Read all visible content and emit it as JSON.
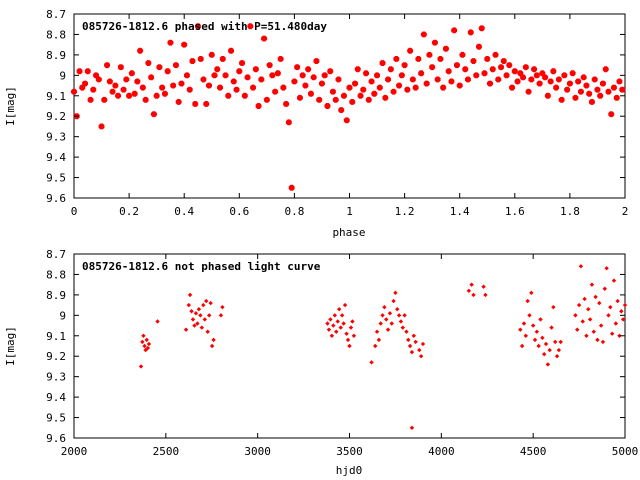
{
  "chart_data": [
    {
      "type": "scatter",
      "title": "085726-1812.6 phased with P=51.480day",
      "xlabel": "phase",
      "ylabel": "I[mag]",
      "xlim": [
        0,
        2
      ],
      "ylim": [
        9.6,
        8.7
      ],
      "y_inverted": true,
      "x_ticks": [
        0,
        0.2,
        0.4,
        0.6,
        0.8,
        1,
        1.2,
        1.4,
        1.6,
        1.8,
        2
      ],
      "x_tick_labels": [
        "0",
        "0.2",
        "0.4",
        "0.6",
        "0.8",
        "1",
        "1.2",
        "1.4",
        "1.6",
        "1.8",
        "2"
      ],
      "y_ticks": [
        8.7,
        8.8,
        8.9,
        9.0,
        9.1,
        9.2,
        9.3,
        9.4,
        9.5,
        9.6
      ],
      "y_tick_labels": [
        "8.7",
        "8.8",
        "8.9",
        "9",
        "9.1",
        "9.2",
        "9.3",
        "9.4",
        "9.5",
        "9.6"
      ],
      "marker_color": "#ff0000",
      "grid": false,
      "points": [
        [
          0.0,
          9.08
        ],
        [
          0.01,
          9.2
        ],
        [
          0.02,
          8.98
        ],
        [
          0.03,
          9.06
        ],
        [
          0.04,
          9.04
        ],
        [
          0.05,
          8.98
        ],
        [
          0.06,
          9.12
        ],
        [
          0.07,
          9.07
        ],
        [
          0.08,
          9.0
        ],
        [
          0.09,
          9.02
        ],
        [
          0.1,
          9.25
        ],
        [
          0.11,
          9.12
        ],
        [
          0.12,
          8.95
        ],
        [
          0.13,
          9.03
        ],
        [
          0.14,
          9.08
        ],
        [
          0.15,
          9.05
        ],
        [
          0.16,
          9.1
        ],
        [
          0.17,
          8.96
        ],
        [
          0.18,
          9.07
        ],
        [
          0.19,
          9.02
        ],
        [
          0.2,
          9.1
        ],
        [
          0.21,
          8.99
        ],
        [
          0.22,
          9.09
        ],
        [
          0.23,
          9.03
        ],
        [
          0.24,
          8.88
        ],
        [
          0.25,
          9.06
        ],
        [
          0.26,
          9.12
        ],
        [
          0.27,
          8.94
        ],
        [
          0.28,
          9.01
        ],
        [
          0.29,
          9.19
        ],
        [
          0.3,
          9.1
        ],
        [
          0.31,
          8.96
        ],
        [
          0.32,
          9.06
        ],
        [
          0.33,
          9.09
        ],
        [
          0.34,
          8.98
        ],
        [
          0.35,
          8.84
        ],
        [
          0.36,
          9.05
        ],
        [
          0.37,
          8.95
        ],
        [
          0.38,
          9.13
        ],
        [
          0.39,
          9.04
        ],
        [
          0.4,
          8.85
        ],
        [
          0.41,
          9.0
        ],
        [
          0.42,
          9.07
        ],
        [
          0.43,
          8.93
        ],
        [
          0.44,
          9.14
        ],
        [
          0.45,
          8.76
        ],
        [
          0.46,
          8.92
        ],
        [
          0.47,
          9.02
        ],
        [
          0.48,
          9.14
        ],
        [
          0.49,
          9.05
        ],
        [
          0.5,
          8.9
        ],
        [
          0.51,
          9.0
        ],
        [
          0.52,
          8.97
        ],
        [
          0.53,
          9.06
        ],
        [
          0.54,
          8.92
        ],
        [
          0.55,
          9.0
        ],
        [
          0.56,
          9.1
        ],
        [
          0.57,
          8.88
        ],
        [
          0.58,
          9.03
        ],
        [
          0.59,
          9.07
        ],
        [
          0.6,
          8.98
        ],
        [
          0.61,
          8.94
        ],
        [
          0.62,
          9.1
        ],
        [
          0.63,
          9.01
        ],
        [
          0.64,
          8.76
        ],
        [
          0.65,
          9.06
        ],
        [
          0.66,
          8.97
        ],
        [
          0.67,
          9.15
        ],
        [
          0.68,
          9.02
        ],
        [
          0.69,
          8.82
        ],
        [
          0.7,
          9.12
        ],
        [
          0.71,
          8.95
        ],
        [
          0.72,
          9.0
        ],
        [
          0.73,
          9.08
        ],
        [
          0.74,
          8.99
        ],
        [
          0.75,
          8.92
        ],
        [
          0.76,
          9.06
        ],
        [
          0.77,
          9.14
        ],
        [
          0.78,
          9.23
        ],
        [
          0.79,
          9.55
        ],
        [
          0.8,
          9.03
        ],
        [
          0.81,
          8.96
        ],
        [
          0.82,
          9.11
        ],
        [
          0.83,
          9.0
        ],
        [
          0.84,
          9.05
        ],
        [
          0.85,
          8.97
        ],
        [
          0.86,
          9.09
        ],
        [
          0.87,
          9.01
        ],
        [
          0.88,
          8.93
        ],
        [
          0.89,
          9.12
        ],
        [
          0.9,
          9.04
        ],
        [
          0.91,
          9.0
        ],
        [
          0.92,
          9.15
        ],
        [
          0.93,
          8.98
        ],
        [
          0.94,
          9.08
        ],
        [
          0.95,
          9.12
        ],
        [
          0.96,
          9.02
        ],
        [
          0.97,
          9.17
        ],
        [
          0.98,
          9.1
        ],
        [
          0.99,
          9.22
        ],
        [
          1.0,
          9.06
        ],
        [
          1.01,
          9.13
        ],
        [
          1.02,
          9.04
        ],
        [
          1.03,
          8.97
        ],
        [
          1.04,
          9.1
        ],
        [
          1.05,
          9.07
        ],
        [
          1.06,
          8.99
        ],
        [
          1.07,
          9.12
        ],
        [
          1.08,
          9.03
        ],
        [
          1.09,
          9.09
        ],
        [
          1.1,
          9.0
        ],
        [
          1.11,
          9.06
        ],
        [
          1.12,
          8.94
        ],
        [
          1.13,
          9.11
        ],
        [
          1.14,
          9.02
        ],
        [
          1.15,
          8.97
        ],
        [
          1.16,
          9.08
        ],
        [
          1.17,
          8.92
        ],
        [
          1.18,
          9.05
        ],
        [
          1.19,
          9.0
        ],
        [
          1.2,
          8.95
        ],
        [
          1.21,
          9.07
        ],
        [
          1.22,
          8.88
        ],
        [
          1.23,
          9.02
        ],
        [
          1.24,
          9.06
        ],
        [
          1.25,
          8.92
        ],
        [
          1.26,
          8.99
        ],
        [
          1.27,
          8.8
        ],
        [
          1.28,
          9.04
        ],
        [
          1.29,
          8.9
        ],
        [
          1.3,
          8.96
        ],
        [
          1.31,
          8.84
        ],
        [
          1.32,
          9.02
        ],
        [
          1.33,
          8.92
        ],
        [
          1.34,
          9.06
        ],
        [
          1.35,
          8.87
        ],
        [
          1.36,
          8.98
        ],
        [
          1.37,
          9.03
        ],
        [
          1.38,
          8.78
        ],
        [
          1.39,
          8.95
        ],
        [
          1.4,
          9.05
        ],
        [
          1.41,
          8.9
        ],
        [
          1.42,
          8.97
        ],
        [
          1.43,
          9.02
        ],
        [
          1.44,
          8.79
        ],
        [
          1.45,
          8.93
        ],
        [
          1.46,
          9.0
        ],
        [
          1.47,
          8.86
        ],
        [
          1.48,
          8.77
        ],
        [
          1.49,
          8.99
        ],
        [
          1.5,
          8.92
        ],
        [
          1.51,
          9.04
        ],
        [
          1.52,
          8.97
        ],
        [
          1.53,
          8.9
        ],
        [
          1.54,
          9.02
        ],
        [
          1.55,
          8.96
        ],
        [
          1.56,
          8.93
        ],
        [
          1.57,
          9.0
        ],
        [
          1.58,
          8.95
        ],
        [
          1.59,
          9.06
        ],
        [
          1.6,
          8.98
        ],
        [
          1.61,
          9.03
        ],
        [
          1.62,
          8.99
        ],
        [
          1.63,
          9.01
        ],
        [
          1.64,
          8.96
        ],
        [
          1.65,
          9.08
        ],
        [
          1.66,
          9.02
        ],
        [
          1.67,
          8.97
        ],
        [
          1.68,
          9.0
        ],
        [
          1.69,
          9.04
        ],
        [
          1.7,
          8.99
        ],
        [
          1.71,
          9.01
        ],
        [
          1.72,
          9.1
        ],
        [
          1.73,
          9.03
        ],
        [
          1.74,
          8.98
        ],
        [
          1.75,
          9.06
        ],
        [
          1.76,
          9.02
        ],
        [
          1.77,
          9.12
        ],
        [
          1.78,
          9.0
        ],
        [
          1.79,
          9.07
        ],
        [
          1.8,
          9.04
        ],
        [
          1.81,
          8.99
        ],
        [
          1.82,
          9.11
        ],
        [
          1.83,
          9.03
        ],
        [
          1.84,
          9.08
        ],
        [
          1.85,
          9.01
        ],
        [
          1.86,
          9.05
        ],
        [
          1.87,
          9.09
        ],
        [
          1.88,
          9.13
        ],
        [
          1.89,
          9.02
        ],
        [
          1.9,
          9.07
        ],
        [
          1.91,
          9.1
        ],
        [
          1.92,
          9.04
        ],
        [
          1.93,
          8.97
        ],
        [
          1.94,
          9.08
        ],
        [
          1.95,
          9.19
        ],
        [
          1.96,
          9.06
        ],
        [
          1.97,
          9.11
        ],
        [
          1.98,
          9.03
        ],
        [
          1.99,
          9.07
        ]
      ]
    },
    {
      "type": "scatter",
      "title": "085726-1812.6 not phased light curve",
      "xlabel": "hjd0",
      "ylabel": "I[mag]",
      "xlim": [
        2000,
        5000
      ],
      "ylim": [
        9.6,
        8.7
      ],
      "y_inverted": true,
      "x_ticks": [
        2000,
        2500,
        3000,
        3500,
        4000,
        4500,
        5000
      ],
      "x_tick_labels": [
        "2000",
        "2500",
        "3000",
        "3500",
        "4000",
        "4500",
        "5000"
      ],
      "y_ticks": [
        8.7,
        8.8,
        8.9,
        9.0,
        9.1,
        9.2,
        9.3,
        9.4,
        9.5,
        9.6
      ],
      "y_tick_labels": [
        "8.7",
        "8.8",
        "8.9",
        "9",
        "9.1",
        "9.2",
        "9.3",
        "9.4",
        "9.5",
        "9.6"
      ],
      "marker_color": "#ff0000",
      "grid": false,
      "points": [
        [
          2365,
          9.25
        ],
        [
          2372,
          9.13
        ],
        [
          2378,
          9.1
        ],
        [
          2384,
          9.15
        ],
        [
          2390,
          9.17
        ],
        [
          2396,
          9.12
        ],
        [
          2402,
          9.16
        ],
        [
          2408,
          9.14
        ],
        [
          2455,
          9.03
        ],
        [
          2610,
          9.07
        ],
        [
          2625,
          8.95
        ],
        [
          2632,
          8.9
        ],
        [
          2640,
          8.98
        ],
        [
          2648,
          9.02
        ],
        [
          2656,
          9.05
        ],
        [
          2664,
          8.99
        ],
        [
          2672,
          9.04
        ],
        [
          2680,
          8.97
        ],
        [
          2688,
          9.0
        ],
        [
          2696,
          9.06
        ],
        [
          2704,
          8.95
        ],
        [
          2712,
          9.02
        ],
        [
          2720,
          8.93
        ],
        [
          2728,
          9.08
        ],
        [
          2736,
          9.0
        ],
        [
          2744,
          8.94
        ],
        [
          2752,
          9.15
        ],
        [
          2760,
          9.12
        ],
        [
          2800,
          9.0
        ],
        [
          2808,
          8.96
        ],
        [
          3380,
          9.04
        ],
        [
          3388,
          9.07
        ],
        [
          3396,
          9.02
        ],
        [
          3404,
          9.1
        ],
        [
          3412,
          9.05
        ],
        [
          3420,
          9.0
        ],
        [
          3428,
          9.08
        ],
        [
          3436,
          9.03
        ],
        [
          3444,
          8.97
        ],
        [
          3452,
          9.06
        ],
        [
          3460,
          9.0
        ],
        [
          3468,
          9.04
        ],
        [
          3476,
          8.95
        ],
        [
          3484,
          9.09
        ],
        [
          3492,
          9.12
        ],
        [
          3500,
          9.15
        ],
        [
          3508,
          9.06
        ],
        [
          3516,
          9.03
        ],
        [
          3524,
          9.1
        ],
        [
          3620,
          9.23
        ],
        [
          3640,
          9.15
        ],
        [
          3650,
          9.08
        ],
        [
          3660,
          9.12
        ],
        [
          3670,
          9.04
        ],
        [
          3680,
          9.0
        ],
        [
          3690,
          8.96
        ],
        [
          3700,
          9.02
        ],
        [
          3710,
          9.07
        ],
        [
          3720,
          8.99
        ],
        [
          3730,
          9.04
        ],
        [
          3740,
          8.93
        ],
        [
          3750,
          8.89
        ],
        [
          3760,
          8.97
        ],
        [
          3770,
          9.0
        ],
        [
          3780,
          9.03
        ],
        [
          3790,
          9.06
        ],
        [
          3800,
          9.0
        ],
        [
          3810,
          9.08
        ],
        [
          3820,
          9.12
        ],
        [
          3830,
          9.15
        ],
        [
          3840,
          9.18
        ],
        [
          3850,
          9.1
        ],
        [
          3860,
          9.13
        ],
        [
          3840,
          9.55
        ],
        [
          3880,
          9.17
        ],
        [
          3890,
          9.2
        ],
        [
          3900,
          9.14
        ],
        [
          4150,
          8.88
        ],
        [
          4165,
          8.85
        ],
        [
          4175,
          8.9
        ],
        [
          4230,
          8.86
        ],
        [
          4240,
          8.9
        ],
        [
          4430,
          9.07
        ],
        [
          4440,
          9.15
        ],
        [
          4450,
          9.04
        ],
        [
          4460,
          9.1
        ],
        [
          4470,
          8.93
        ],
        [
          4480,
          9.0
        ],
        [
          4490,
          8.89
        ],
        [
          4500,
          9.05
        ],
        [
          4510,
          9.12
        ],
        [
          4520,
          9.08
        ],
        [
          4530,
          9.15
        ],
        [
          4540,
          9.02
        ],
        [
          4550,
          9.11
        ],
        [
          4560,
          9.19
        ],
        [
          4570,
          9.14
        ],
        [
          4580,
          9.24
        ],
        [
          4590,
          9.17
        ],
        [
          4600,
          9.06
        ],
        [
          4610,
          8.96
        ],
        [
          4620,
          9.13
        ],
        [
          4630,
          9.2
        ],
        [
          4640,
          9.17
        ],
        [
          4650,
          9.13
        ],
        [
          4730,
          9.0
        ],
        [
          4740,
          9.07
        ],
        [
          4750,
          8.95
        ],
        [
          4760,
          8.76
        ],
        [
          4770,
          9.03
        ],
        [
          4780,
          8.92
        ],
        [
          4790,
          9.1
        ],
        [
          4800,
          8.97
        ],
        [
          4810,
          9.02
        ],
        [
          4820,
          8.85
        ],
        [
          4830,
          9.08
        ],
        [
          4840,
          8.91
        ],
        [
          4850,
          9.12
        ],
        [
          4860,
          8.94
        ],
        [
          4870,
          9.05
        ],
        [
          4880,
          9.13
        ],
        [
          4890,
          8.87
        ],
        [
          4900,
          8.77
        ],
        [
          4910,
          9.0
        ],
        [
          4920,
          8.96
        ],
        [
          4930,
          9.09
        ],
        [
          4940,
          8.83
        ],
        [
          4950,
          9.04
        ],
        [
          4960,
          8.93
        ],
        [
          4970,
          9.1
        ],
        [
          4980,
          8.98
        ],
        [
          4990,
          9.02
        ],
        [
          5000,
          8.95
        ]
      ]
    }
  ]
}
